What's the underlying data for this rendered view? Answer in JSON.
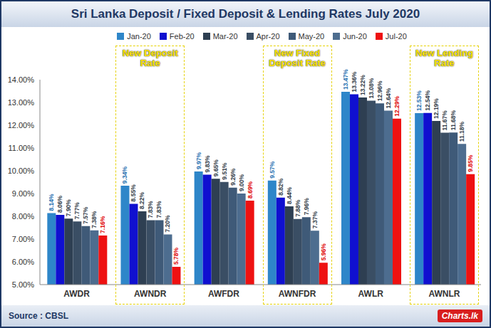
{
  "chart_data": {
    "type": "bar",
    "title": "Sri Lanka Deposit / Fixed Deposit & Lending Rates July 2020",
    "categories": [
      "AWDR",
      "AWNDR",
      "AWFDR",
      "AWNFDR",
      "AWLR",
      "AWNLR"
    ],
    "series": [
      {
        "name": "Jan-20",
        "color": "#2e86c9",
        "values": [
          8.14,
          9.34,
          9.97,
          9.57,
          13.47,
          12.53
        ],
        "value_labels": [
          "8.14%",
          "9.34%",
          "9.97%",
          "9.57%",
          "13.47%",
          "12.53%"
        ]
      },
      {
        "name": "Feb-20",
        "color": "#1010d0",
        "values": [
          8.06,
          8.55,
          9.83,
          8.82,
          13.36,
          12.54
        ],
        "value_labels": [
          "8.06%",
          "8.55%",
          "9.83%",
          "8.82%",
          "13.36%",
          "12.54%"
        ]
      },
      {
        "name": "Mar-20",
        "color": "#2e3f52",
        "values": [
          7.9,
          8.22,
          9.65,
          8.44,
          13.22,
          12.19
        ],
        "value_labels": [
          "7.90%",
          "8.22%",
          "9.65%",
          "8.44%",
          "13.22%",
          "12.19%"
        ]
      },
      {
        "name": "Apr-20",
        "color": "#3a4e64",
        "values": [
          7.77,
          7.83,
          9.51,
          7.88,
          13.08,
          11.67
        ],
        "value_labels": [
          "7.77%",
          "7.83%",
          "9.51%",
          "7.88%",
          "13.08%",
          "11.67%"
        ]
      },
      {
        "name": "May-20",
        "color": "#3f5a78",
        "values": [
          7.57,
          7.83,
          9.26,
          7.96,
          12.96,
          11.68
        ],
        "value_labels": [
          "7.57%",
          "7.83%",
          "9.26%",
          "7.96%",
          "12.96%",
          "11.68%"
        ]
      },
      {
        "name": "Jun-20",
        "color": "#4d6d8f",
        "values": [
          7.38,
          7.2,
          9.0,
          7.37,
          12.64,
          11.18
        ],
        "value_labels": [
          "7.38%",
          "7.20%",
          "9.00%",
          "7.37%",
          "12.64%",
          "11.18%"
        ]
      },
      {
        "name": "Jul-20",
        "color": "#ee1111",
        "values": [
          7.16,
          5.78,
          8.69,
          5.96,
          12.29,
          9.85
        ],
        "value_labels": [
          "7.16%",
          "5.78%",
          "8.69%",
          "5.96%",
          "12.29%",
          "9.85%"
        ]
      }
    ],
    "ylim": [
      5,
      14
    ],
    "yticks": [
      {
        "value": 5,
        "label": "5.00%"
      },
      {
        "value": 6,
        "label": "6.00%"
      },
      {
        "value": 7,
        "label": "7.00%"
      },
      {
        "value": 8,
        "label": "8.00%"
      },
      {
        "value": 9,
        "label": "9.00%"
      },
      {
        "value": 10,
        "label": "10.00%"
      },
      {
        "value": 11,
        "label": "11.00%"
      },
      {
        "value": 12,
        "label": "12.00%"
      },
      {
        "value": 13,
        "label": "13.00%"
      },
      {
        "value": 14,
        "label": "14.00%"
      }
    ],
    "grid": false,
    "data_labels": true,
    "annotations": [
      {
        "text": "New Deposit Rate",
        "category": "AWNDR"
      },
      {
        "text": "New Fixed Deposit Rate",
        "category": "AWNFDR"
      },
      {
        "text": "New Lending Rate",
        "category": "AWNLR"
      }
    ],
    "source": "Source : CBSL",
    "logo": "Charts.lk"
  }
}
